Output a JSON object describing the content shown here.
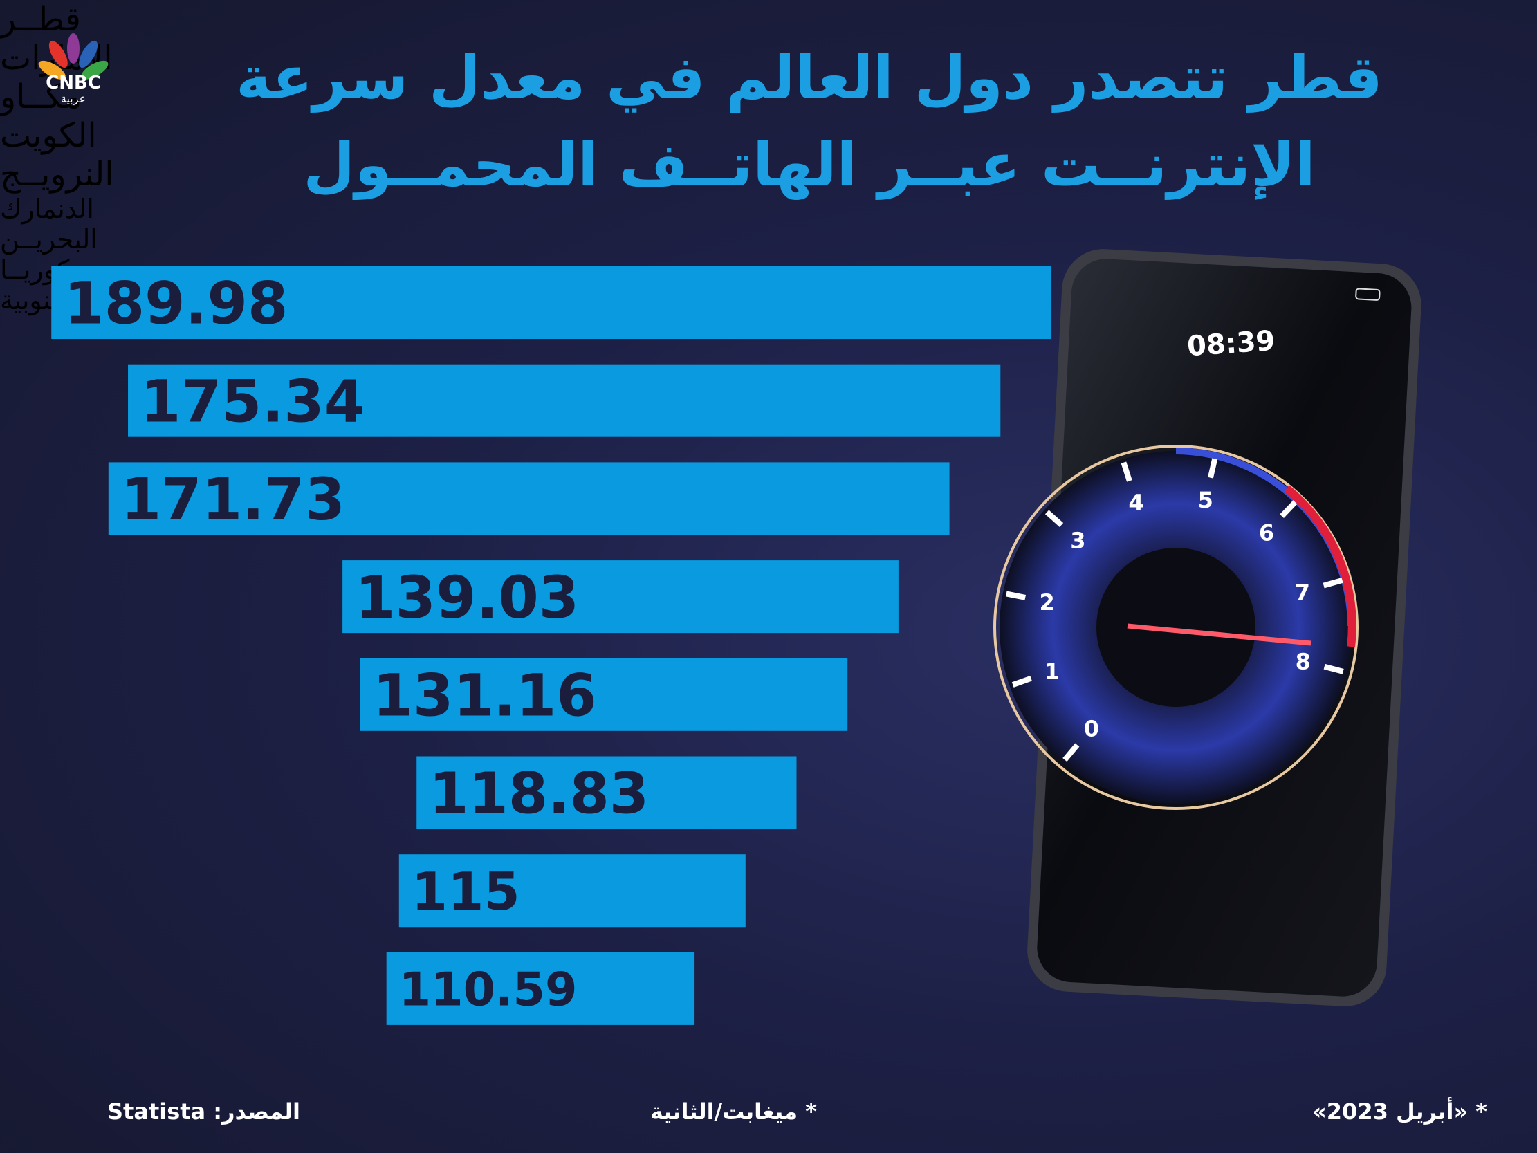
{
  "chart_data": {
    "type": "bar",
    "title": [
      "قطر تتصدر دول العالم في معدل سرعة",
      "الإنترنــت عبــر الهاتــف المحمــول"
    ],
    "categories": [
      "قطــر",
      "الإمارات",
      "مكــاو",
      "الكويت",
      "النرويــج",
      "الدنمارك",
      "البحريــن",
      "كوريــا الجنوبية"
    ],
    "values": [
      189.98,
      175.34,
      171.73,
      139.03,
      131.16,
      118.83,
      115,
      110.59
    ],
    "color": "#0a9ae0",
    "source": "المصدر: Statista",
    "unit_note": "* ميغابت/الثانية",
    "date_note": "* «أبريل 2023»"
  },
  "logo": {
    "name": "CNBC",
    "subtitle": "عربية"
  },
  "phone": {
    "time": "08:39",
    "gauge": [
      0,
      1,
      2,
      3,
      4,
      5,
      6,
      7,
      8
    ]
  }
}
